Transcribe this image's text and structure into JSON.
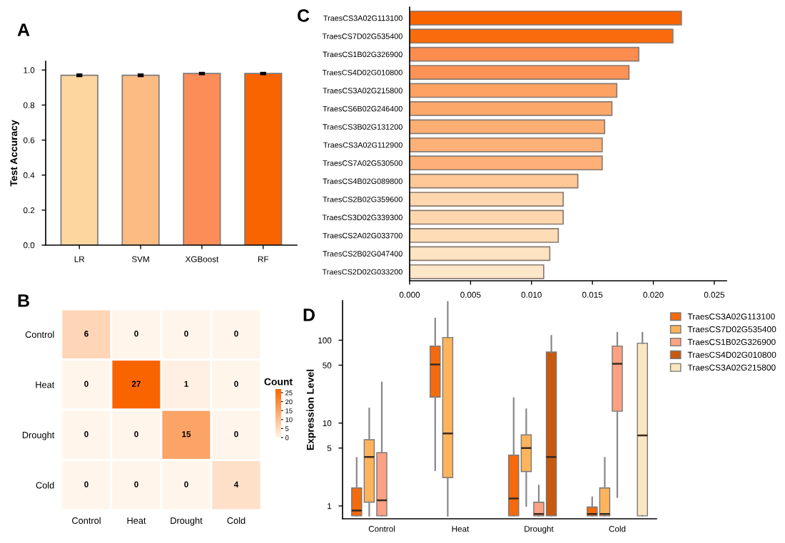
{
  "chart_data": [
    {
      "type": "bar",
      "title": "A",
      "ylabel": "Test Accuracy",
      "categories": [
        "LR",
        "SVM",
        "XGBoost",
        "RF"
      ],
      "values": [
        0.97,
        0.97,
        0.98,
        0.98
      ],
      "errors": [
        0.005,
        0.005,
        0.004,
        0.004
      ],
      "colors": [
        "#fdd59f",
        "#fdbb84",
        "#fc8d59",
        "#f96400"
      ],
      "ylim": [
        0,
        1.05
      ],
      "yticks": [
        {
          "value": 0,
          "label": "0.0"
        },
        {
          "value": 0.2,
          "label": "0.2"
        },
        {
          "value": 0.4,
          "label": "0.4"
        },
        {
          "value": 0.6,
          "label": "0.6"
        },
        {
          "value": 0.8,
          "label": "0.8"
        },
        {
          "value": 1,
          "label": "1.0"
        }
      ],
      "grid": false
    },
    {
      "type": "bar",
      "title": "C",
      "orientation": "horizontal",
      "categories": [
        "TraesCS3A02G113100",
        "TraesCS7D02G535400",
        "TraesCS1B02G326900",
        "TraesCS4D02G010800",
        "TraesCS3A02G215800",
        "TraesCS6B02G246400",
        "TraesCS3B02G131200",
        "TraesCS3A02G112900",
        "TraesCS7A02G530500",
        "TraesCS4B02G089800",
        "TraesCS2B02G359600",
        "TraesCS3D02G339300",
        "TraesCS2A02G033700",
        "TraesCS2B02G047400",
        "TraesCS2D02G033200"
      ],
      "values": [
        0.0223,
        0.0216,
        0.0188,
        0.018,
        0.017,
        0.0166,
        0.016,
        0.0158,
        0.0158,
        0.0138,
        0.0126,
        0.0126,
        0.0122,
        0.0115,
        0.011
      ],
      "colors": [
        "#f96400",
        "#f96b0c",
        "#fc8d4f",
        "#fc9255",
        "#fda263",
        "#fda86b",
        "#fdae72",
        "#fdb077",
        "#fdb077",
        "#fec796",
        "#fed7ae",
        "#fed7ae",
        "#fedcb5",
        "#fee3c2",
        "#fee6c8"
      ],
      "xlim": [
        0,
        0.026
      ],
      "xticks": [
        {
          "value": 0,
          "label": "0.000"
        },
        {
          "value": 0.005,
          "label": "0.005"
        },
        {
          "value": 0.01,
          "label": "0.010"
        },
        {
          "value": 0.015,
          "label": "0.015"
        },
        {
          "value": 0.02,
          "label": "0.020"
        },
        {
          "value": 0.025,
          "label": "0.025"
        }
      ],
      "grid": false
    },
    {
      "type": "heatmap",
      "title": "B",
      "categories": [
        "Control",
        "Heat",
        "Drought",
        "Cold"
      ],
      "y_categories": [
        "Control",
        "Heat",
        "Drought",
        "Cold"
      ],
      "cells": [
        [
          6,
          0,
          0,
          0
        ],
        [
          0,
          27,
          1,
          0
        ],
        [
          0,
          0,
          15,
          0
        ],
        [
          0,
          0,
          0,
          4
        ]
      ],
      "colors": [
        "#fff5eb",
        "#f96400"
      ],
      "clim": [
        0,
        27
      ],
      "cticks": [
        0,
        5,
        10,
        15,
        20,
        25
      ],
      "clabel": "Count",
      "data_labels": true
    },
    {
      "type": "box",
      "title": "D",
      "ylabel": "Expression Level",
      "categories": [
        "Control",
        "Heat",
        "Drought",
        "Cold"
      ],
      "log": "y",
      "ylim": [
        0.7,
        300
      ],
      "yticks": [
        1,
        5,
        10,
        50,
        100
      ],
      "legend": "right",
      "grid": false,
      "series": [
        {
          "name": "TraesCS3A02G113100",
          "color": "#f46a0c",
          "boxes": [
            {
              "low": 0.76,
              "q1": 0.76,
              "median": 0.88,
              "q3": 1.65,
              "high": 3.8
            },
            {
              "low": 2.7,
              "q1": 20.6,
              "median": 51,
              "q3": 85,
              "high": 183
            },
            {
              "low": 0.76,
              "q1": 0.76,
              "median": 1.23,
              "q3": 4.1,
              "high": 20
            },
            {
              "low": 0.76,
              "q1": 0.76,
              "median": 0.8,
              "q3": 0.97,
              "high": 1.27
            }
          ]
        },
        {
          "name": "TraesCS7D02G535400",
          "color": "#fdb45c",
          "boxes": [
            {
              "low": 0.76,
              "q1": 1.11,
              "median": 3.9,
              "q3": 6.3,
              "high": 15
            },
            {
              "low": 0.76,
              "q1": 2.2,
              "median": 7.5,
              "q3": 108,
              "high": 290
            },
            {
              "low": 1.0,
              "q1": 2.6,
              "median": 5.0,
              "q3": 7.2,
              "high": 14.7
            },
            {
              "low": 0.76,
              "q1": 0.76,
              "median": 0.8,
              "q3": 1.65,
              "high": 3.8
            }
          ]
        },
        {
          "name": "TraesCS1B02G326900",
          "color": "#fca283",
          "boxes": [
            {
              "low": 0.76,
              "q1": 0.76,
              "median": 1.17,
              "q3": 4.4,
              "high": 31
            },
            null,
            {
              "low": 0.76,
              "q1": 0.76,
              "median": 0.8,
              "q3": 1.11,
              "high": 1.76
            },
            {
              "low": 1.28,
              "q1": 13.9,
              "median": 52,
              "q3": 85,
              "high": 123
            }
          ]
        },
        {
          "name": "TraesCS4D02G010800",
          "color": "#c85a10",
          "boxes": [
            null,
            null,
            {
              "low": 0.76,
              "q1": 0.76,
              "median": 3.9,
              "q3": 72,
              "high": 113
            },
            null
          ]
        },
        {
          "name": "TraesCS3A02G215800",
          "color": "#fbe6c0",
          "boxes": [
            null,
            null,
            null,
            {
              "low": 0.76,
              "q1": 0.76,
              "median": 7.1,
              "q3": 92,
              "high": 123
            }
          ]
        }
      ]
    }
  ]
}
